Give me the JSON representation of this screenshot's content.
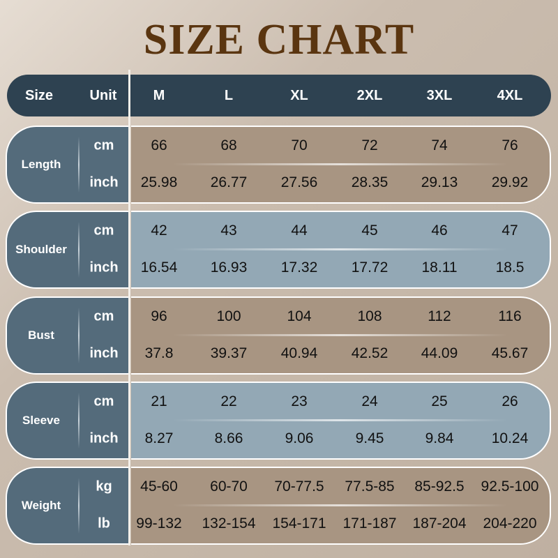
{
  "title": "SIZE CHART",
  "header": {
    "size_label": "Size",
    "unit_label": "Unit",
    "sizes": [
      "M",
      "L",
      "XL",
      "2XL",
      "3XL",
      "4XL"
    ]
  },
  "colors": {
    "title": "#5a3510",
    "header": "#2e4251",
    "label_block": "#546b7b",
    "tan": "#a89582",
    "blue": "#93a8b5"
  },
  "rows": [
    {
      "label": "Length",
      "color": "#a89582",
      "unit1": "cm",
      "unit2": "inch",
      "values1": [
        "66",
        "68",
        "70",
        "72",
        "74",
        "76"
      ],
      "values2": [
        "25.98",
        "26.77",
        "27.56",
        "28.35",
        "29.13",
        "29.92"
      ]
    },
    {
      "label": "Shoulder",
      "color": "#93a8b5",
      "unit1": "cm",
      "unit2": "inch",
      "values1": [
        "42",
        "43",
        "44",
        "45",
        "46",
        "47"
      ],
      "values2": [
        "16.54",
        "16.93",
        "17.32",
        "17.72",
        "18.11",
        "18.5"
      ]
    },
    {
      "label": "Bust",
      "color": "#a89582",
      "unit1": "cm",
      "unit2": "inch",
      "values1": [
        "96",
        "100",
        "104",
        "108",
        "112",
        "116"
      ],
      "values2": [
        "37.8",
        "39.37",
        "40.94",
        "42.52",
        "44.09",
        "45.67"
      ]
    },
    {
      "label": "Sleeve",
      "color": "#93a8b5",
      "unit1": "cm",
      "unit2": "inch",
      "values1": [
        "21",
        "22",
        "23",
        "24",
        "25",
        "26"
      ],
      "values2": [
        "8.27",
        "8.66",
        "9.06",
        "9.45",
        "9.84",
        "10.24"
      ]
    },
    {
      "label": "Weight",
      "color": "#a89582",
      "unit1": "kg",
      "unit2": "lb",
      "values1": [
        "45-60",
        "60-70",
        "70-77.5",
        "77.5-85",
        "85-92.5",
        "92.5-100"
      ],
      "values2": [
        "99-132",
        "132-154",
        "154-171",
        "171-187",
        "187-204",
        "204-220"
      ]
    }
  ]
}
